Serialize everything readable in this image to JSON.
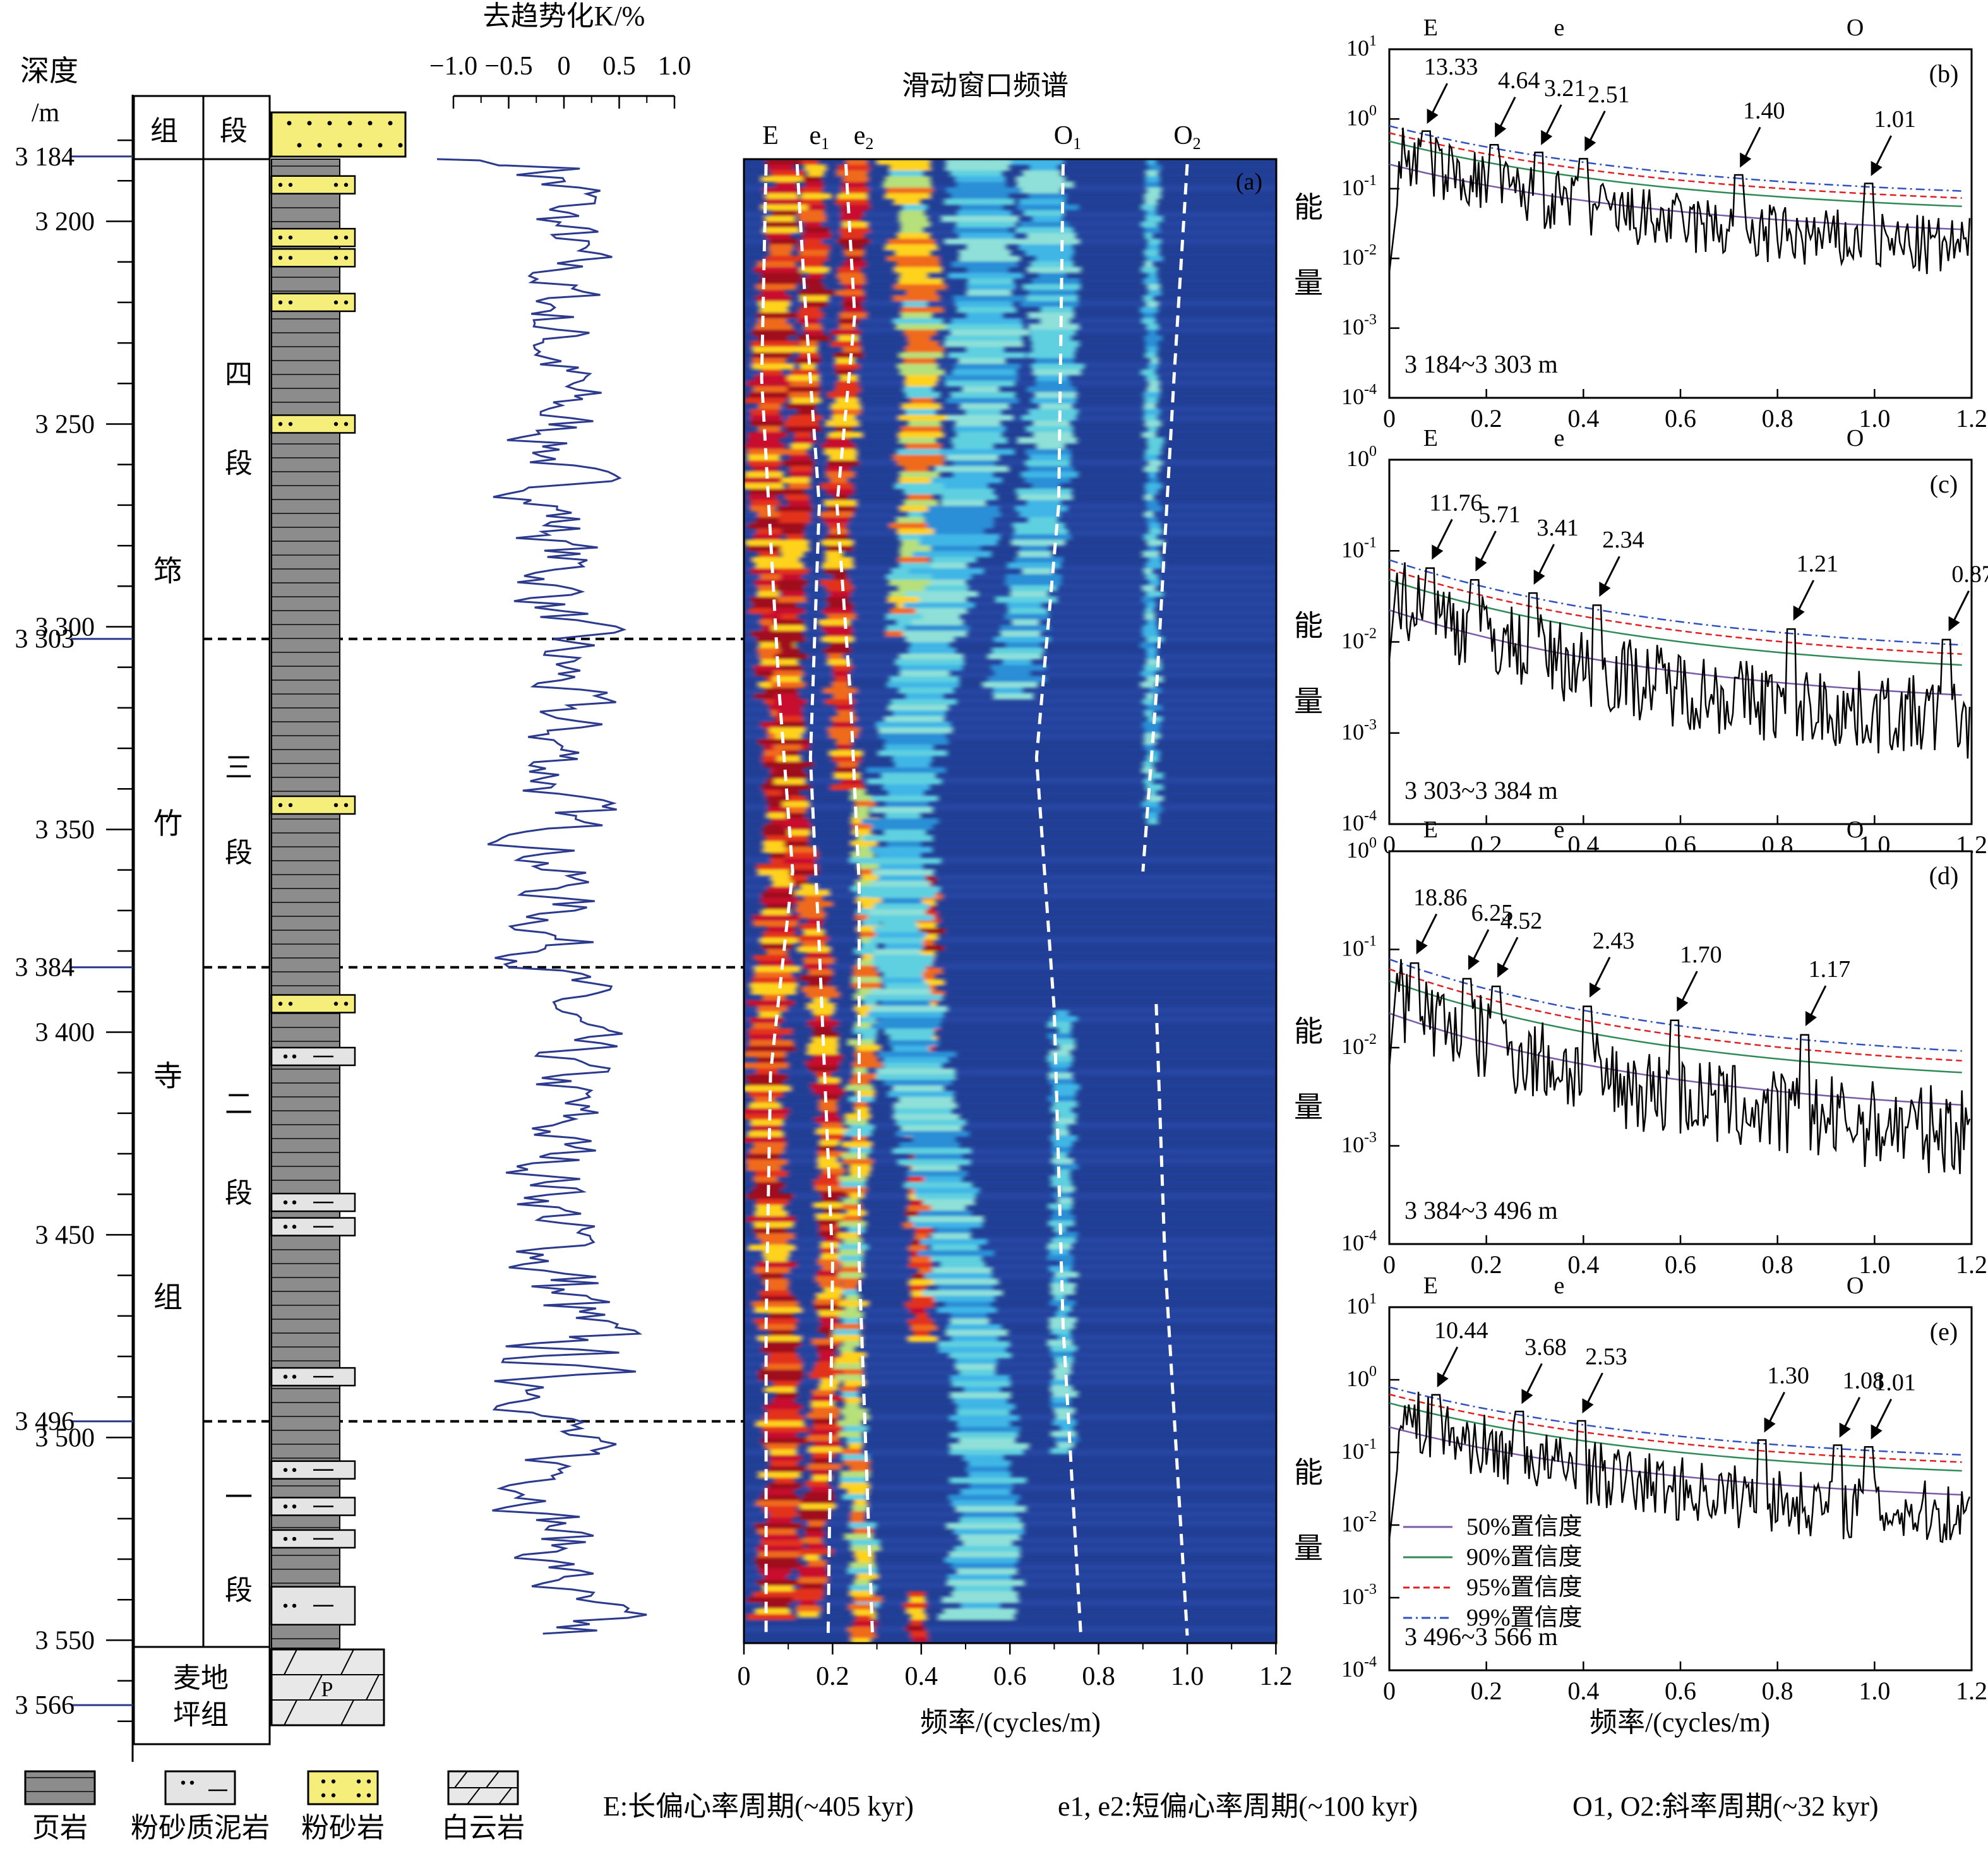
{
  "colors": {
    "blue_curve": "#2b3a8c",
    "shale": "#8c8c8c",
    "silty_mud": "#e4e4e4",
    "siltstone": "#f6ee7a",
    "dolomite": "#e8e8e8",
    "conf50": "#7b5aa6",
    "conf90": "#2e8b57",
    "conf95": "#e02020",
    "conf99": "#3050c0"
  },
  "depth_axis": {
    "title": "深度",
    "unit": "/m",
    "min": 3175,
    "max": 3580,
    "ticks": [
      "3 200",
      "3 250",
      "3 300",
      "3 350",
      "3 400",
      "3 450",
      "3 500",
      "3 550"
    ],
    "tick_values": [
      3200,
      3250,
      3300,
      3350,
      3400,
      3450,
      3500,
      3550
    ],
    "boundaries": [
      "3 184",
      "3 303",
      "3 384",
      "3 496",
      "3 566"
    ],
    "boundary_values": [
      3184,
      3303,
      3384,
      3496,
      3566
    ]
  },
  "strat": {
    "col_formation": "组",
    "col_member": "段",
    "formation": [
      "筇",
      "竹",
      "寺",
      "组"
    ],
    "members": [
      "四段",
      "三段",
      "二段",
      "一段"
    ],
    "lower_formation": [
      "麦地",
      "坪组"
    ],
    "dolomite_mark": "P"
  },
  "curve": {
    "title": "去趋势化K/%",
    "ticks": [
      "−1.0",
      "−0.5",
      "0",
      "0.5",
      "1.0"
    ],
    "tick_values": [
      -1.0,
      -0.5,
      0,
      0.5,
      1.0
    ]
  },
  "spectrogram": {
    "title": "滑动窗口频谱",
    "panel_label": "(a)",
    "xlabel": "频率/(cycles/m)",
    "xticks": [
      "0",
      "0.2",
      "0.4",
      "0.6",
      "0.8",
      "1.0",
      "1.2"
    ],
    "xtick_values": [
      0,
      0.2,
      0.4,
      0.6,
      0.8,
      1.0,
      1.2
    ],
    "top_labels": [
      {
        "base": "E",
        "sub": ""
      },
      {
        "base": "e",
        "sub": "1"
      },
      {
        "base": "e",
        "sub": "2"
      },
      {
        "base": "O",
        "sub": "1"
      },
      {
        "base": "O",
        "sub": "2"
      }
    ]
  },
  "power_ylabel": [
    "能",
    "量"
  ],
  "spectra": [
    {
      "label": "(b)",
      "range": "3 184~3 303 m",
      "bands": [
        "E",
        "e",
        "O"
      ],
      "ymin_exp": -4,
      "ymax_exp": 1,
      "xticks": [
        "0",
        "0.2",
        "0.4",
        "0.6",
        "0.8",
        "1.0",
        "1.2"
      ],
      "peaks": [
        {
          "text": "13.33",
          "f": 0.075
        },
        {
          "text": "4.64",
          "f": 0.215
        },
        {
          "text": "3.21",
          "f": 0.31
        },
        {
          "text": "2.51",
          "f": 0.4
        },
        {
          "text": "1.40",
          "f": 0.72
        },
        {
          "text": "1.01",
          "f": 0.99
        }
      ]
    },
    {
      "label": "(c)",
      "range": "3 303~3 384 m",
      "bands": [
        "E",
        "e",
        "O"
      ],
      "ymin_exp": -4,
      "ymax_exp": 0,
      "xticks": [
        "0",
        "0.2",
        "0.4",
        "0.6",
        "0.8",
        "1.0",
        "1.2"
      ],
      "peaks": [
        {
          "text": "11.76",
          "f": 0.085
        },
        {
          "text": "5.71",
          "f": 0.175
        },
        {
          "text": "3.41",
          "f": 0.295
        },
        {
          "text": "2.34",
          "f": 0.43
        },
        {
          "text": "1.21",
          "f": 0.83
        },
        {
          "text": "0.87",
          "f": 1.15
        }
      ]
    },
    {
      "label": "(d)",
      "range": "3 384~3 496 m",
      "bands": [
        "E",
        "e",
        "O"
      ],
      "ymin_exp": -4,
      "ymax_exp": 0,
      "xticks": [
        "0",
        "0.2",
        "0.4",
        "0.6",
        "0.8",
        "1.0",
        "1.2"
      ],
      "peaks": [
        {
          "text": "18.86",
          "f": 0.053
        },
        {
          "text": "6.25",
          "f": 0.16
        },
        {
          "text": "4.52",
          "f": 0.22
        },
        {
          "text": "2.43",
          "f": 0.41
        },
        {
          "text": "1.70",
          "f": 0.59
        },
        {
          "text": "1.17",
          "f": 0.855
        }
      ]
    },
    {
      "label": "(e)",
      "range": "3 496~3 566 m",
      "bands": [
        "E",
        "e",
        "O"
      ],
      "ymin_exp": -4,
      "ymax_exp": 1,
      "xticks": [
        "0",
        "0.2",
        "0.4",
        "0.6",
        "0.8",
        "1.0",
        "1.2"
      ],
      "peaks": [
        {
          "text": "10.44",
          "f": 0.096
        },
        {
          "text": "3.68",
          "f": 0.27
        },
        {
          "text": "2.53",
          "f": 0.395
        },
        {
          "text": "1.30",
          "f": 0.77
        },
        {
          "text": "1.08",
          "f": 0.925
        },
        {
          "text": "1.01",
          "f": 0.99
        }
      ]
    }
  ],
  "spectrum_xlabel": "频率/(cycles/m)",
  "confidence_legend": [
    "50%置信度",
    "90%置信度",
    "95%置信度",
    "99%置信度"
  ],
  "lith_legend": [
    "页岩",
    "粉砂质泥岩",
    "粉砂岩",
    "白云岩"
  ],
  "explanations": [
    "E:长偏心率周期(~405 kyr)",
    "e1, e2:短偏心率周期(~100 kyr)",
    "O1, O2:斜率周期(~32 kyr)"
  ]
}
